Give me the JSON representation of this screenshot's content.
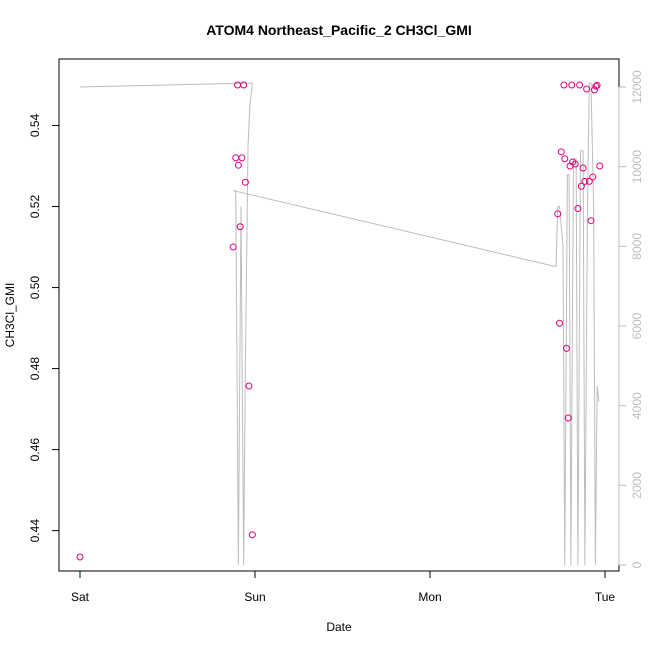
{
  "chart_data": {
    "type": "scatter",
    "title": "ATOM4 Northeast_Pacific_2 CH3Cl_GMI",
    "xlabel": "Date",
    "ylabel": "CH3Cl_GMI",
    "x_tick_labels": [
      "Sat",
      "Sun",
      "Mon",
      "Tue"
    ],
    "x_tick_values": [
      0,
      1,
      2,
      3
    ],
    "xlim": [
      0,
      3
    ],
    "ylim": [
      0.4335,
      0.5495
    ],
    "y_ticks": [
      "0.44",
      "0.46",
      "0.48",
      "0.50",
      "0.52",
      "0.54"
    ],
    "y_tick_values": [
      0.44,
      0.46,
      0.48,
      0.5,
      0.52,
      0.54
    ],
    "y2lim": [
      0,
      12000
    ],
    "y2_ticks": [
      "0",
      "2000",
      "4000",
      "6000",
      "8000",
      "10000",
      "12000"
    ],
    "y2_tick_values": [
      0,
      2000,
      4000,
      6000,
      8000,
      10000,
      12000
    ],
    "grid": false,
    "series": [
      {
        "kind": "points",
        "axis": "left",
        "color": "#e6007e",
        "marker": "open-circle",
        "points": [
          [
            0.0,
            0.4335
          ],
          [
            0.875,
            0.51
          ],
          [
            0.89,
            0.532
          ],
          [
            0.9,
            0.55
          ],
          [
            0.905,
            0.5302
          ],
          [
            0.915,
            0.515
          ],
          [
            0.925,
            0.532
          ],
          [
            0.935,
            0.55
          ],
          [
            0.945,
            0.526
          ],
          [
            0.965,
            0.4757
          ],
          [
            0.985,
            0.439
          ],
          [
            2.73,
            0.5182
          ],
          [
            2.74,
            0.4912
          ],
          [
            2.75,
            0.5335
          ],
          [
            2.765,
            0.55
          ],
          [
            2.77,
            0.5318
          ],
          [
            2.78,
            0.485
          ],
          [
            2.79,
            0.4678
          ],
          [
            2.8,
            0.53
          ],
          [
            2.81,
            0.55
          ],
          [
            2.815,
            0.531
          ],
          [
            2.83,
            0.5305
          ],
          [
            2.845,
            0.5195
          ],
          [
            2.855,
            0.55
          ],
          [
            2.865,
            0.525
          ],
          [
            2.875,
            0.5295
          ],
          [
            2.885,
            0.5262
          ],
          [
            2.895,
            0.549
          ],
          [
            2.91,
            0.5262
          ],
          [
            2.92,
            0.5165
          ],
          [
            2.93,
            0.5273
          ],
          [
            2.94,
            0.5488
          ],
          [
            2.948,
            0.5497
          ],
          [
            2.955,
            0.5499
          ],
          [
            2.97,
            0.53
          ]
        ]
      },
      {
        "kind": "line",
        "axis": "right",
        "color": "#bdbdbd",
        "points": [
          [
            0.0,
            12000
          ],
          [
            0.985,
            12100
          ],
          [
            0.97,
            11500
          ],
          [
            0.96,
            10500
          ],
          [
            0.945,
            5000
          ],
          [
            0.935,
            0
          ],
          [
            0.92,
            9000
          ],
          [
            0.905,
            0
          ],
          [
            0.89,
            9400
          ],
          [
            0.875,
            9400
          ],
          [
            2.71,
            7500
          ],
          [
            2.72,
            7500
          ],
          [
            2.73,
            9000
          ],
          [
            2.74,
            9000
          ],
          [
            2.76,
            8000
          ],
          [
            2.77,
            0
          ],
          [
            2.785,
            9800
          ],
          [
            2.795,
            9800
          ],
          [
            2.805,
            0
          ],
          [
            2.82,
            10200
          ],
          [
            2.835,
            10200
          ],
          [
            2.845,
            0
          ],
          [
            2.86,
            10400
          ],
          [
            2.875,
            10400
          ],
          [
            2.885,
            0
          ],
          [
            2.9,
            9000
          ],
          [
            2.91,
            12100
          ],
          [
            2.92,
            12100
          ],
          [
            2.935,
            9000
          ],
          [
            2.945,
            0
          ],
          [
            2.955,
            4500
          ],
          [
            2.965,
            4100
          ]
        ]
      }
    ]
  }
}
